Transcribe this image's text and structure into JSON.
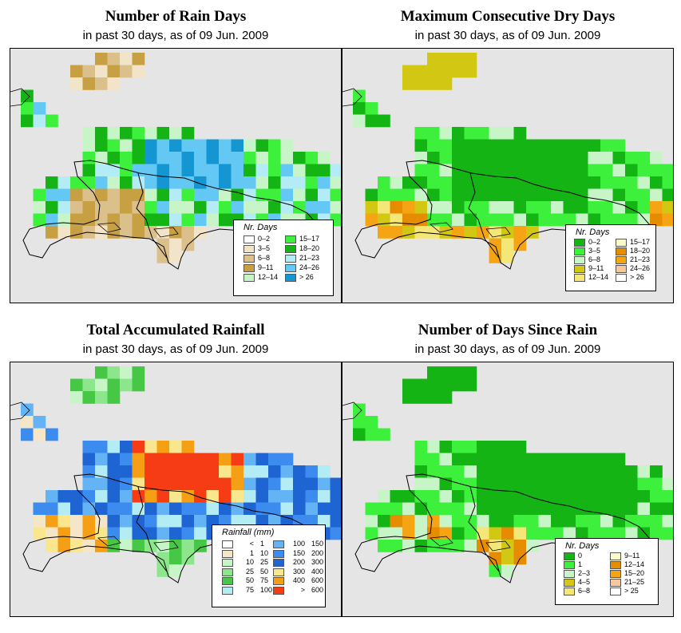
{
  "panels": [
    {
      "id": "rain-days",
      "title": "Number of Rain Days",
      "subtitle": "in past 30 days, as of  09 Jun. 2009",
      "legend": {
        "title": "Nr. Days",
        "items": [
          {
            "label": "0–2",
            "color": "#ffffff"
          },
          {
            "label": "3–5",
            "color": "#f2e4c8"
          },
          {
            "label": "6–8",
            "color": "#dcc08c"
          },
          {
            "label": "9–11",
            "color": "#c8a044"
          },
          {
            "label": "12–14",
            "color": "#c8f5c8"
          },
          {
            "label": "15–17",
            "color": "#3cf03c"
          },
          {
            "label": "18–20",
            "color": "#14b414"
          },
          {
            "label": "21–23",
            "color": "#b4ecf5"
          },
          {
            "label": "24–26",
            "color": "#64c8f5"
          },
          {
            "label": "> 26",
            "color": "#1496d2"
          }
        ]
      }
    },
    {
      "id": "max-dry-days",
      "title": "Maximum Consecutive Dry Days",
      "subtitle": "in past 30 days, as of  09 Jun. 2009",
      "legend": {
        "title": "Nr. Days",
        "items": [
          {
            "label": "0–2",
            "color": "#14b414"
          },
          {
            "label": "3–5",
            "color": "#3cf03c"
          },
          {
            "label": "6–8",
            "color": "#c8f5c8"
          },
          {
            "label": "9–11",
            "color": "#d2c814"
          },
          {
            "label": "12–14",
            "color": "#f5e678"
          },
          {
            "label": "15–17",
            "color": "#fafac8"
          },
          {
            "label": "18–20",
            "color": "#e68c00"
          },
          {
            "label": "21–23",
            "color": "#f5a514"
          },
          {
            "label": "24–26",
            "color": "#f5c8a0"
          },
          {
            "label": "> 26",
            "color": "#ffffff"
          }
        ]
      }
    },
    {
      "id": "total-rainfall",
      "title": "Total Accumulated Rainfall",
      "subtitle": "in past 30 days, as of  09 Jun. 2009",
      "legend": {
        "title": "Rainfall (mm)",
        "items": [
          {
            "from": "<",
            "to": "1",
            "color": "#ffffff"
          },
          {
            "from": "1",
            "to": "10",
            "color": "#f5e6c8"
          },
          {
            "from": "10",
            "to": "25",
            "color": "#c8f5c8"
          },
          {
            "from": "25",
            "to": "50",
            "color": "#8ce68c"
          },
          {
            "from": "50",
            "to": "75",
            "color": "#46c846"
          },
          {
            "from": "75",
            "to": "100",
            "color": "#b4ecf5"
          },
          {
            "from": "100",
            "to": "150",
            "color": "#64b4f5"
          },
          {
            "from": "150",
            "to": "200",
            "color": "#3c8cf0"
          },
          {
            "from": "200",
            "to": "300",
            "color": "#1e64d2"
          },
          {
            "from": "300",
            "to": "400",
            "color": "#fae68c"
          },
          {
            "from": "400",
            "to": "600",
            "color": "#f5a014"
          },
          {
            "from": ">",
            "to": "600",
            "color": "#f53c14"
          }
        ]
      }
    },
    {
      "id": "days-since-rain",
      "title": "Number of Days Since Rain",
      "subtitle": "in past 30 days, as of  09 Jun. 2009",
      "legend": {
        "title": "Nr. Days",
        "items": [
          {
            "label": "0",
            "color": "#14b414"
          },
          {
            "label": "1",
            "color": "#3cf03c"
          },
          {
            "label": "2–3",
            "color": "#c8f5c8"
          },
          {
            "label": "4–5",
            "color": "#d2c814"
          },
          {
            "label": "6–8",
            "color": "#f5e678"
          },
          {
            "label": "9–11",
            "color": "#fafac8"
          },
          {
            "label": "12–14",
            "color": "#e68c00"
          },
          {
            "label": "15–20",
            "color": "#f5a514"
          },
          {
            "label": "21–25",
            "color": "#f5c8a0"
          },
          {
            "label": "> 25",
            "color": "#ffffff"
          }
        ]
      }
    }
  ]
}
